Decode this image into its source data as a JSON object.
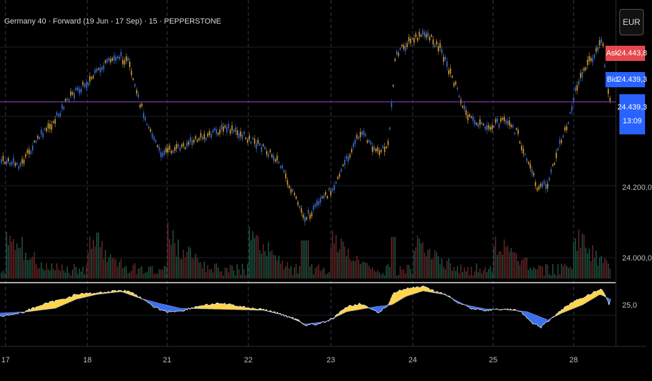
{
  "header": {
    "title": "Germany 40 · Forward (19 Jun - 17 Sep) · 15 · PEPPERSTONE"
  },
  "currency_button": {
    "label": "EUR"
  },
  "quote": {
    "ask_label": "Ask",
    "ask_price": "24.443,8",
    "bid_label": "Bid",
    "bid_price": "24.439,3",
    "last_price": "24.439,3",
    "countdown": "13:09"
  },
  "price_axis": {
    "labels": [
      "24.200,0",
      "24.000,0"
    ]
  },
  "indicator_axis": {
    "label": "25,0"
  },
  "time_axis": {
    "labels": [
      "17",
      "18",
      "21",
      "22",
      "23",
      "24",
      "25",
      "28"
    ]
  },
  "colors": {
    "background": "#000000",
    "candle_up": "#d8a23a",
    "candle_down": "#3f6fd8",
    "ask": "#e5484d",
    "bid": "#2962ff",
    "fill_above": "#ffd54a",
    "fill_below": "#3b6ff0",
    "price_line": "#7b3fa0",
    "volume_up": "#1f5e4a",
    "volume_down": "#6e2a2a",
    "grid": "#1c1f26",
    "day_separator": "#2f3d5a"
  }
}
